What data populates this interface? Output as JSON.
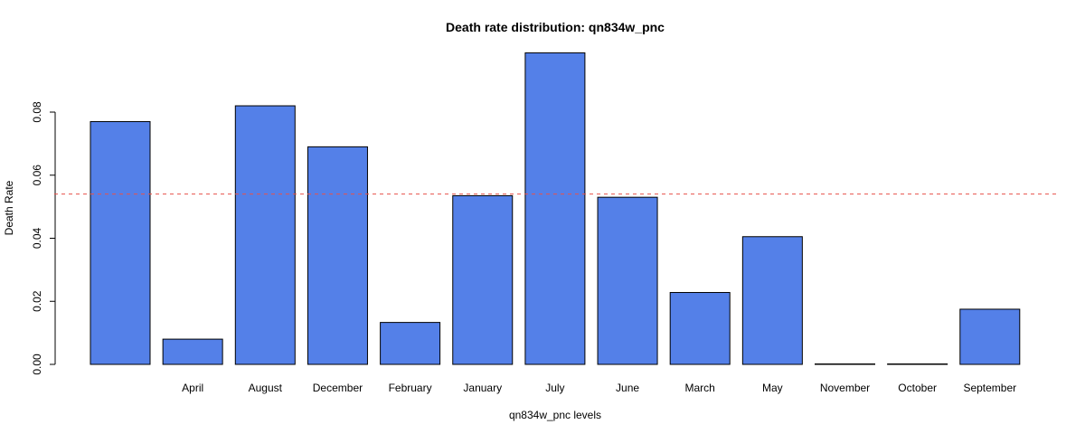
{
  "chart_data": {
    "type": "bar",
    "title": "Death rate distribution: qn834w_pnc",
    "xlabel": "qn834w_pnc levels",
    "ylabel": "Death Rate",
    "categories": [
      "",
      "April",
      "August",
      "December",
      "February",
      "January",
      "July",
      "June",
      "March",
      "May",
      "November",
      "October",
      "September"
    ],
    "values": [
      0.077,
      0.008,
      0.082,
      0.069,
      0.0133,
      0.0535,
      0.0988,
      0.053,
      0.0228,
      0.0405,
      0.0,
      0.0,
      0.0175
    ],
    "ylim": [
      0,
      0.1
    ],
    "yticks": [
      "0.00",
      "0.02",
      "0.04",
      "0.06",
      "0.08"
    ],
    "reference_line": {
      "value": 0.054,
      "style": "dashed",
      "color": "#e8524a"
    },
    "bar_color": "#5480e8",
    "grid": false,
    "legend": "none"
  }
}
